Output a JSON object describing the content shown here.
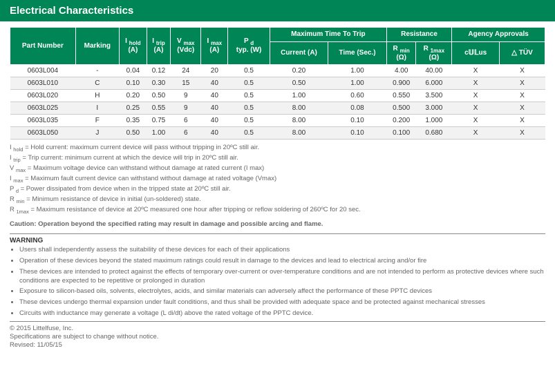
{
  "title": "Electrical Characteristics",
  "headers": {
    "part": "Part Number",
    "marking": "Marking",
    "ihold": "I",
    "ihold_sub": "hold",
    "ihold_unit": "(A)",
    "itrip": "I",
    "itrip_sub": "trip",
    "itrip_unit": "(A)",
    "vmax": "V",
    "vmax_sub": "max",
    "vmax_unit": "(Vdc)",
    "imax": "I",
    "imax_sub": "max",
    "imax_unit": "(A)",
    "pd": "P",
    "pd_sub": "d",
    "pd_unit": "typ. (W)",
    "mtt": "Maximum Time To Trip",
    "mtt_cur": "Current (A)",
    "mtt_time": "Time (Sec.)",
    "res": "Resistance",
    "rmin": "R",
    "rmin_sub": "min",
    "rmin_unit": "(Ω)",
    "rmax": "R",
    "rmax_sub": "1max",
    "rmax_unit": "(Ω)",
    "agency": "Agency Approvals",
    "ul": "c𝕌𝕃us",
    "tuv": "△ TÜV"
  },
  "rows": [
    {
      "part": "0603L004",
      "mark": "-",
      "ihold": "0.04",
      "itrip": "0.12",
      "vmax": "24",
      "imax": "20",
      "pd": "0.5",
      "cur": "0.20",
      "time": "1.00",
      "rmin": "4.00",
      "rmax": "40.00",
      "ul": "X",
      "tuv": "X"
    },
    {
      "part": "0603L010",
      "mark": "C",
      "ihold": "0.10",
      "itrip": "0.30",
      "vmax": "15",
      "imax": "40",
      "pd": "0.5",
      "cur": "0.50",
      "time": "1.00",
      "rmin": "0.900",
      "rmax": "6.000",
      "ul": "X",
      "tuv": "X"
    },
    {
      "part": "0603L020",
      "mark": "H",
      "ihold": "0.20",
      "itrip": "0.50",
      "vmax": "9",
      "imax": "40",
      "pd": "0.5",
      "cur": "1.00",
      "time": "0.60",
      "rmin": "0.550",
      "rmax": "3.500",
      "ul": "X",
      "tuv": "X"
    },
    {
      "part": "0603L025",
      "mark": "I",
      "ihold": "0.25",
      "itrip": "0.55",
      "vmax": "9",
      "imax": "40",
      "pd": "0.5",
      "cur": "8.00",
      "time": "0.08",
      "rmin": "0.500",
      "rmax": "3.000",
      "ul": "X",
      "tuv": "X"
    },
    {
      "part": "0603L035",
      "mark": "F",
      "ihold": "0.35",
      "itrip": "0.75",
      "vmax": "6",
      "imax": "40",
      "pd": "0.5",
      "cur": "8.00",
      "time": "0.10",
      "rmin": "0.200",
      "rmax": "1.000",
      "ul": "X",
      "tuv": "X"
    },
    {
      "part": "0603L050",
      "mark": "J",
      "ihold": "0.50",
      "itrip": "1.00",
      "vmax": "6",
      "imax": "40",
      "pd": "0.5",
      "cur": "8.00",
      "time": "0.10",
      "rmin": "0.100",
      "rmax": "0.680",
      "ul": "X",
      "tuv": "X"
    }
  ],
  "notes": [
    {
      "sym": "I",
      "sub": "hold",
      "txt": " = Hold current: maximum current device will pass without tripping in 20ºC still air."
    },
    {
      "sym": "I",
      "sub": "trip",
      "txt": " = Trip current: minimum current at which the device will trip in 20ºC still air."
    },
    {
      "sym": "V",
      "sub": "max",
      "txt": " = Maximum voltage device can withstand without damage at rated current (I max)"
    },
    {
      "sym": "I",
      "sub": "max",
      "txt": " = Maximum fault current device can withstand without damage at rated voltage (Vmax)"
    },
    {
      "sym": "P",
      "sub": "d",
      "txt": " = Power dissipated from device when in the tripped state at 20ºC still air."
    },
    {
      "sym": "R",
      "sub": "min",
      "txt": " = Minimum resistance of device in initial (un-soldered) state."
    },
    {
      "sym": "R",
      "sub": "1max",
      "txt": " = Maximum resistance of device at 20ºC measured one hour after tripping or reflow soldering of 260ºC for 20 sec."
    }
  ],
  "caution": "Caution: Operation beyond the specified rating may result in damage and possible arcing and flame.",
  "warn_hd": "WARNING",
  "warnings": [
    "Users shall independently assess the suitability of these devices for each of their applications",
    "Operation of these devices beyond the stated maximum ratings could result in damage to the devices and lead to electrical arcing and/or fire",
    "These devices are intended to protect against the effects of temporary over-current or over-temperature conditions and are not intended to perform as protective devices where such conditions are expected to be repetitive or prolonged in duration",
    "Exposure to silicon-based oils, solvents, electrolytes, acids, and similar materials can adversely affect the performance of these PPTC devices",
    "These devices undergo thermal expansion under fault conditions, and thus shall be provided with adequate space and be protected against mechanical stresses",
    "Circuits with inductance may generate a voltage (L di/dt) above the rated voltage of the PPTC device."
  ],
  "foot1": "© 2015 Littelfuse, Inc.",
  "foot2": "Specifications are subject to change without notice.",
  "foot3": "Revised: 11/05/15"
}
